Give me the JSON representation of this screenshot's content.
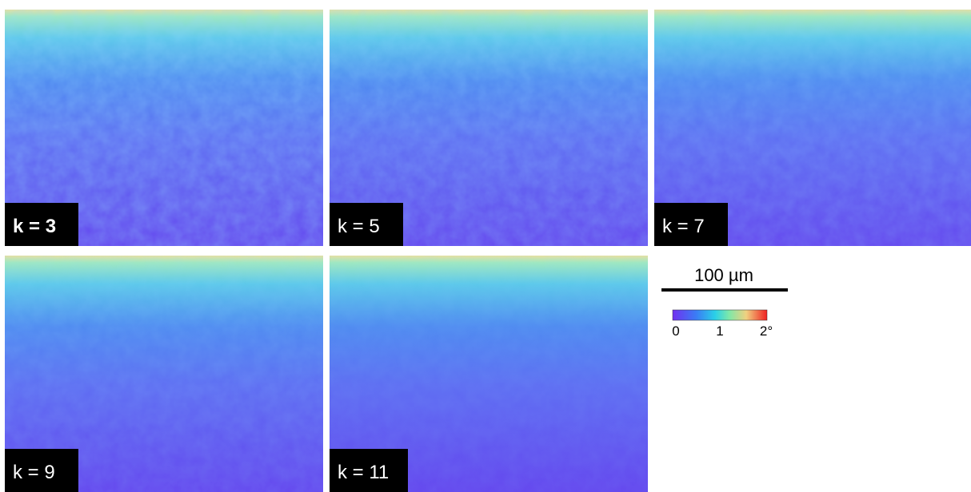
{
  "panels": [
    {
      "label": "k = 3",
      "bold": true
    },
    {
      "label": "k = 5",
      "bold": false
    },
    {
      "label": "k = 7",
      "bold": false
    },
    {
      "label": "k = 9",
      "bold": false
    },
    {
      "label": "k = 11",
      "bold": false
    }
  ],
  "scale_bar": {
    "label": "100 µm"
  },
  "colorbar": {
    "ticks": [
      "0",
      "1",
      "2°"
    ]
  }
}
